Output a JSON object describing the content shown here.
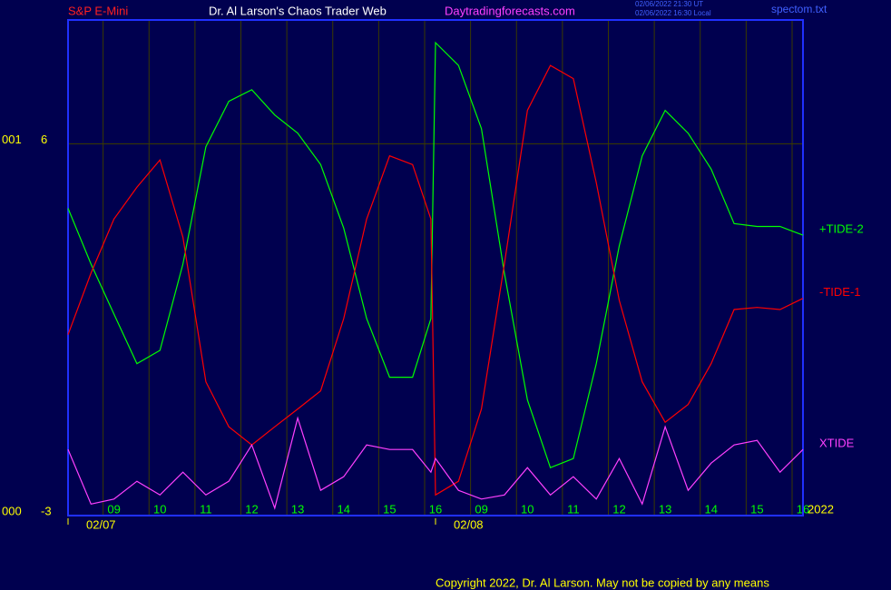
{
  "chart_data": {
    "type": "line",
    "title": "Dr. Al Larson's Chaos Trader Web",
    "symbol": "S&P E-Mini",
    "site": "Daytradingforecasts.com",
    "timestamps": [
      "02/06/2022 21:30 UT",
      "02/06/2022 16:30 Local"
    ],
    "file": "spectom.txt",
    "copyright": "Copyright 2022, Dr. Al Larson. May not be copied by any means",
    "year": "2022",
    "left_labels": [
      {
        "value": 6,
        "label": "001"
      },
      {
        "value": -3,
        "label": "000"
      }
    ],
    "x": [
      8,
      8.5,
      9,
      9.5,
      10,
      10.5,
      11,
      11.5,
      12,
      12.5,
      13,
      13.5,
      14,
      14.5,
      15,
      15.5,
      15.9,
      16,
      16.5,
      17,
      17.5,
      18,
      18.5,
      19,
      19.5,
      20,
      20.5,
      21,
      21.5,
      22,
      22.5,
      23,
      23.5,
      24
    ],
    "series": [
      {
        "name": "+TIDE-2",
        "color": "#00ff00",
        "values": [
          4.44,
          3.09,
          1.88,
          0.68,
          1.0,
          3.09,
          5.93,
          7.03,
          7.31,
          6.7,
          6.26,
          5.5,
          3.96,
          1.77,
          0.35,
          0.35,
          1.77,
          8.45,
          7.9,
          6.37,
          2.87,
          -0.2,
          -1.84,
          -1.62,
          0.68,
          3.53,
          5.71,
          6.81,
          6.26,
          5.39,
          4.07,
          4.0,
          4.0,
          3.79
        ]
      },
      {
        "name": "-TIDE-1",
        "color": "#ff0000",
        "values": [
          1.38,
          2.87,
          4.18,
          4.95,
          5.61,
          3.74,
          0.24,
          -0.85,
          -1.29,
          -0.85,
          -0.42,
          0.02,
          1.77,
          4.18,
          5.71,
          5.5,
          4.18,
          -2.5,
          -2.17,
          -0.42,
          3.09,
          6.81,
          7.9,
          7.58,
          5.06,
          2.21,
          0.24,
          -0.74,
          -0.31,
          0.68,
          1.99,
          2.04,
          1.99,
          2.26
        ]
      },
      {
        "name": "XTIDE",
        "color": "#ff40ff",
        "values": [
          -1.4,
          -2.72,
          -2.6,
          -2.17,
          -2.5,
          -1.95,
          -2.5,
          -2.17,
          -1.29,
          -2.82,
          -0.64,
          -2.39,
          -2.06,
          -1.29,
          -1.4,
          -1.4,
          -1.95,
          -1.62,
          -2.39,
          -2.6,
          -2.5,
          -1.84,
          -2.5,
          -2.06,
          -2.6,
          -1.62,
          -2.72,
          -0.85,
          -2.39,
          -1.73,
          -1.29,
          -1.18,
          -1.95,
          -1.4
        ]
      }
    ],
    "xlim": [
      8,
      24
    ],
    "xticks": [
      {
        "value": 9,
        "label": "09"
      },
      10,
      11,
      12,
      13,
      14,
      15,
      16,
      {
        "value": 17,
        "label": "09"
      },
      {
        "value": 18,
        "label": "10"
      },
      {
        "value": 19,
        "label": "11"
      },
      {
        "value": 20,
        "label": "12"
      },
      {
        "value": 21,
        "label": "13"
      },
      {
        "value": 22,
        "label": "14"
      },
      {
        "value": 23,
        "label": "15"
      },
      {
        "value": 24,
        "label": "16"
      }
    ],
    "date_ticks": [
      {
        "value": 8,
        "label": "02/07"
      },
      {
        "value": 16,
        "label": "02/08"
      }
    ],
    "ylim": [
      -3,
      9
    ],
    "yticks": [
      -3,
      6
    ],
    "grid": true
  }
}
